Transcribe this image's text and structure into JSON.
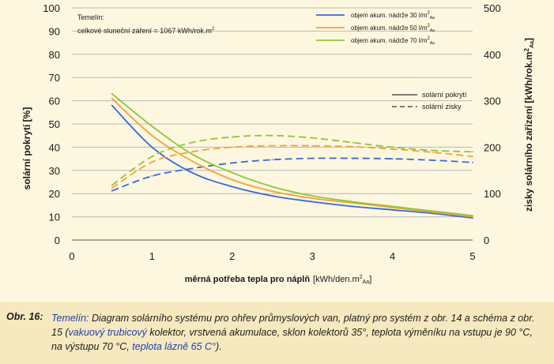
{
  "chart_data": {
    "type": "line",
    "x": [
      0.5,
      1,
      1.5,
      2,
      2.5,
      3,
      3.5,
      4,
      4.5,
      5
    ],
    "xlim": [
      0,
      5
    ],
    "x_ticks": [
      "0",
      "1",
      "2",
      "3",
      "4",
      "5"
    ],
    "ylim": [
      0,
      100
    ],
    "y_ticks": [
      "0",
      "10",
      "20",
      "30",
      "40",
      "50",
      "60",
      "70",
      "80",
      "90",
      "100"
    ],
    "y2lim": [
      0,
      500
    ],
    "y2_ticks": [
      "0",
      "100",
      "200",
      "300",
      "400",
      "500"
    ],
    "xlabel_main": "měrná potřeba tepla pro náplň",
    "xlabel_unit": "[kWh/den.m",
    "ylabel": "solární pokrytí [%]",
    "y2label": "zisky solárního zařízení [kWh/rok.m",
    "annotation_line1": "Temelín:",
    "annotation_line2": "celkové sluneční záření = 1067 kWh/rok.m",
    "grid": true,
    "legend_position": "top-right",
    "legend_style": {
      "solid_label": "solární pokrytí",
      "dashed_label": "solární zisky"
    },
    "series": [
      {
        "name": "objem akum. nádrže 30 l/m",
        "color": "#3a67d9",
        "coverage_pct": [
          58,
          40,
          29,
          23,
          19,
          16.5,
          14.5,
          13,
          11.5,
          9.5
        ],
        "gains_kwh": [
          106,
          138,
          154,
          166,
          173,
          176,
          176,
          175,
          172,
          167
        ]
      },
      {
        "name": "objem akum. nádrže 50 l/m",
        "color": "#f4a23a",
        "coverage_pct": [
          61,
          45,
          34,
          26,
          21,
          18,
          16,
          14,
          12,
          10
        ],
        "gains_kwh": [
          112,
          168,
          190,
          200,
          203,
          203,
          201,
          196,
          189,
          180
        ]
      },
      {
        "name": "objem akum. nádrže 70 l/m",
        "color": "#8cc63e",
        "coverage_pct": [
          63,
          49,
          37,
          29,
          23,
          19,
          16.5,
          14.5,
          12.5,
          10.5
        ],
        "gains_kwh": [
          118,
          180,
          210,
          222,
          225,
          220,
          210,
          200,
          193,
          190
        ]
      }
    ]
  },
  "caption": {
    "label": "Obr. 16:",
    "part1": "Temelín:",
    "part2": " Diagram solárního systému pro ohřev průmyslových van, platný pro systém z obr. 14 a schéma z obr. 15 (",
    "part3": "vakuový trubicový",
    "part4": " kolektor, vrstvená akumulace, sklon kolektorů 35°, teplota výměníku na vstupu je 90 °C, na výstupu 70 °C, ",
    "part5": "teplota lázně 65 C°",
    "part6": ")."
  }
}
